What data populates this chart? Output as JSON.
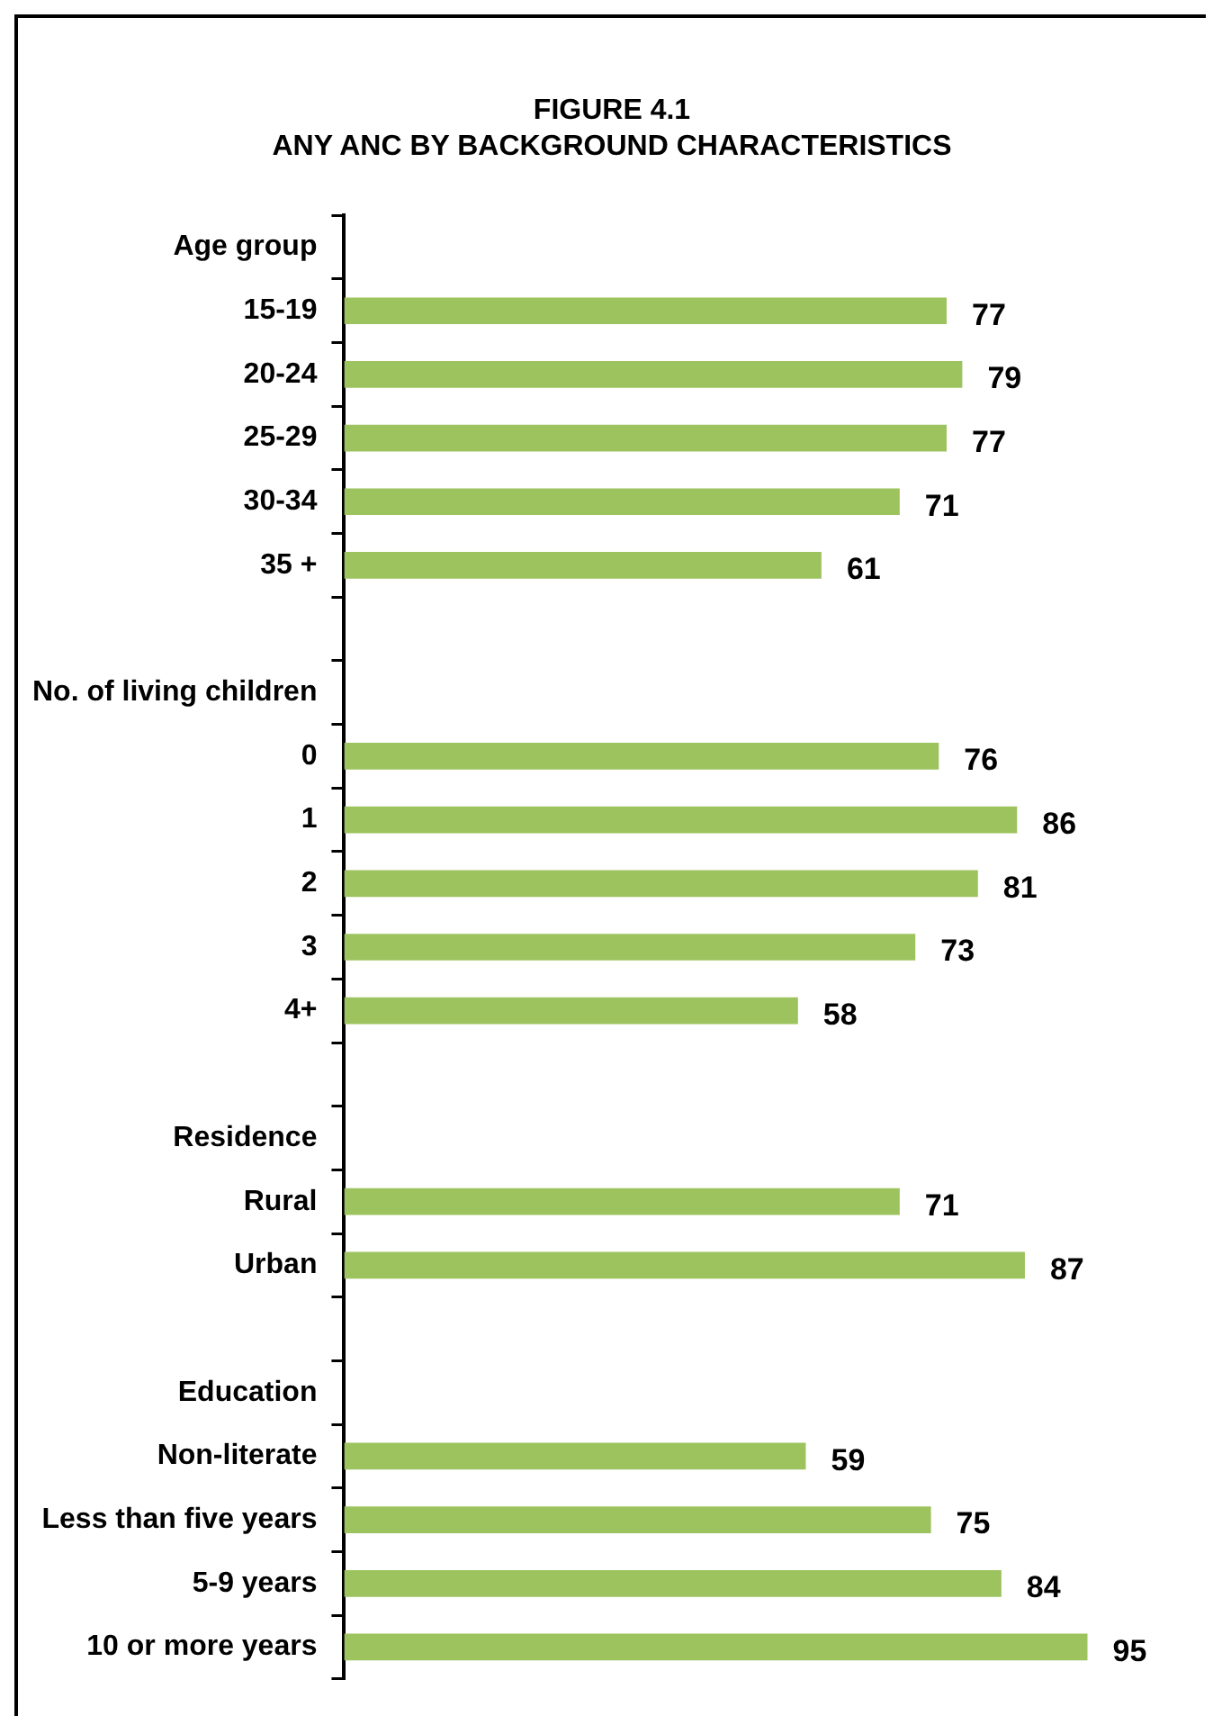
{
  "chart_data": {
    "type": "bar",
    "orientation": "horizontal",
    "title": "FIGURE 4.1",
    "subtitle": "ANY ANC BY BACKGROUND CHARACTERISTICS",
    "categories": [
      "Age group",
      "15-19",
      "20-24",
      "25-29",
      "30-34",
      "35 +",
      null,
      "No. of living children",
      "0",
      "1",
      "2",
      "3",
      "4+",
      null,
      "Residence",
      "Rural",
      "Urban",
      null,
      "Education",
      "Non-literate",
      "Less than five years",
      "5-9 years",
      "10 or more years"
    ],
    "values": [
      null,
      77,
      79,
      77,
      71,
      61,
      null,
      null,
      76,
      86,
      81,
      73,
      58,
      null,
      null,
      71,
      87,
      null,
      null,
      59,
      75,
      84,
      95
    ],
    "color": "#9dc35f",
    "tick_labels": "y",
    "data_labels": true,
    "grid": false,
    "legend": false
  }
}
